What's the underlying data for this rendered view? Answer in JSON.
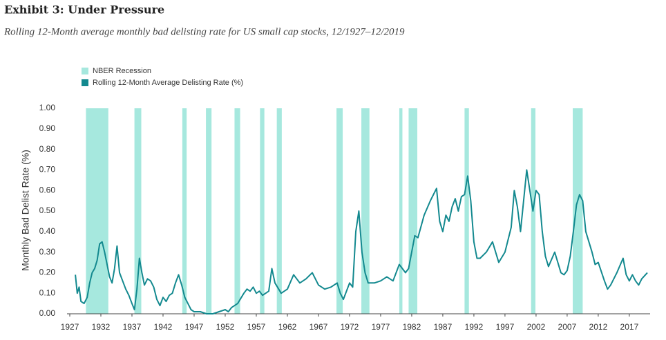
{
  "chart_data": {
    "type": "line",
    "title": "Exhibit 3: Under Pressure",
    "subtitle": "Rolling 12-Month average monthly bad delisting rate for US small cap stocks, 12/1927–12/2019",
    "y_label": "Monthly Bad Delist Rate (%)",
    "legend_position": "upper left",
    "recessions": {
      "name": "NBER Recession",
      "color": "#a6e8de",
      "ranges": [
        [
          1929.6,
          1933.2
        ],
        [
          1937.4,
          1938.5
        ],
        [
          1945.1,
          1945.8
        ],
        [
          1948.9,
          1949.8
        ],
        [
          1953.5,
          1954.4
        ],
        [
          1957.6,
          1958.3
        ],
        [
          1960.3,
          1961.1
        ],
        [
          1969.9,
          1970.9
        ],
        [
          1973.9,
          1975.2
        ],
        [
          1980.0,
          1980.5
        ],
        [
          1981.5,
          1982.9
        ],
        [
          1990.5,
          1991.2
        ],
        [
          2001.2,
          2001.9
        ],
        [
          2007.9,
          2009.5
        ]
      ]
    },
    "x": [
      1927.9,
      1928.2,
      1928.5,
      1928.8,
      1929.3,
      1929.8,
      1930.2,
      1930.6,
      1931.0,
      1931.4,
      1931.8,
      1932.2,
      1932.6,
      1933.0,
      1933.4,
      1933.8,
      1934.2,
      1934.6,
      1935.0,
      1935.5,
      1936.0,
      1936.5,
      1937.0,
      1937.4,
      1937.8,
      1938.2,
      1938.6,
      1939.0,
      1939.5,
      1940.0,
      1940.5,
      1941.0,
      1941.5,
      1942.0,
      1942.5,
      1943.0,
      1943.5,
      1944.0,
      1944.5,
      1945.0,
      1945.5,
      1946.0,
      1946.5,
      1947.0,
      1948,
      1949,
      1950,
      1951,
      1952,
      1952.5,
      1953,
      1954,
      1955,
      1955.5,
      1956,
      1956.5,
      1957,
      1957.5,
      1958,
      1959,
      1959.5,
      1960,
      1961,
      1962,
      1963,
      1964,
      1965,
      1966,
      1967,
      1968,
      1969,
      1970,
      1970.5,
      1971,
      1972,
      1972.5,
      1973,
      1973.5,
      1974,
      1974.5,
      1975,
      1976,
      1977,
      1978,
      1979,
      1980,
      1980.5,
      1981,
      1981.5,
      1982,
      1982.5,
      1983,
      1984,
      1985,
      1986,
      1986.5,
      1987,
      1987.5,
      1988,
      1988.5,
      1989,
      1989.5,
      1990,
      1990.5,
      1991,
      1991.5,
      1992,
      1992.5,
      1993,
      1994,
      1995,
      1996,
      1997,
      1998,
      1998.5,
      1999,
      1999.5,
      2000,
      2000.5,
      2001,
      2001.5,
      2002,
      2002.5,
      2003,
      2003.5,
      2004,
      2005,
      2005.5,
      2006,
      2006.5,
      2007,
      2007.5,
      2008,
      2008.5,
      2009,
      2009.5,
      2010,
      2011,
      2011.5,
      2012,
      2013,
      2013.5,
      2014,
      2015,
      2016,
      2016.5,
      2017,
      2017.5,
      2018,
      2018.5,
      2019,
      2019.9
    ],
    "series": [
      {
        "name": "Rolling 12-Month Average Delisting Rate (%)",
        "color": "#13898f",
        "values": [
          0.19,
          0.1,
          0.13,
          0.06,
          0.05,
          0.08,
          0.15,
          0.2,
          0.22,
          0.26,
          0.34,
          0.35,
          0.3,
          0.24,
          0.18,
          0.15,
          0.22,
          0.33,
          0.2,
          0.16,
          0.12,
          0.09,
          0.05,
          0.02,
          0.12,
          0.27,
          0.2,
          0.14,
          0.17,
          0.16,
          0.13,
          0.07,
          0.04,
          0.08,
          0.06,
          0.09,
          0.1,
          0.15,
          0.19,
          0.14,
          0.08,
          0.05,
          0.02,
          0.01,
          0.01,
          0.0,
          0.0,
          0.01,
          0.02,
          0.01,
          0.03,
          0.05,
          0.1,
          0.12,
          0.11,
          0.13,
          0.1,
          0.11,
          0.09,
          0.11,
          0.22,
          0.15,
          0.1,
          0.12,
          0.19,
          0.15,
          0.17,
          0.2,
          0.14,
          0.12,
          0.13,
          0.15,
          0.1,
          0.07,
          0.15,
          0.13,
          0.4,
          0.5,
          0.3,
          0.2,
          0.15,
          0.15,
          0.16,
          0.18,
          0.16,
          0.24,
          0.22,
          0.2,
          0.22,
          0.3,
          0.38,
          0.37,
          0.48,
          0.55,
          0.61,
          0.45,
          0.4,
          0.48,
          0.45,
          0.52,
          0.56,
          0.5,
          0.57,
          0.58,
          0.67,
          0.55,
          0.35,
          0.27,
          0.27,
          0.3,
          0.35,
          0.25,
          0.3,
          0.42,
          0.6,
          0.52,
          0.4,
          0.55,
          0.7,
          0.6,
          0.5,
          0.6,
          0.58,
          0.4,
          0.28,
          0.23,
          0.3,
          0.25,
          0.2,
          0.19,
          0.21,
          0.28,
          0.4,
          0.53,
          0.58,
          0.55,
          0.4,
          0.3,
          0.24,
          0.25,
          0.16,
          0.12,
          0.14,
          0.2,
          0.27,
          0.19,
          0.16,
          0.19,
          0.16,
          0.14,
          0.17,
          0.2
        ]
      }
    ],
    "xlim": [
      1927,
      2019.9
    ],
    "xticks": [
      1927,
      1932,
      1937,
      1942,
      1947,
      1952,
      1957,
      1962,
      1967,
      1972,
      1977,
      1982,
      1987,
      1992,
      1997,
      2002,
      2007,
      2012,
      2017
    ],
    "ylim": [
      0,
      1
    ],
    "yticks": [
      {
        "value": 0,
        "label": "0.00"
      },
      {
        "value": 0.1,
        "label": "0.10"
      },
      {
        "value": 0.2,
        "label": "0.20"
      },
      {
        "value": 0.3,
        "label": "0.30"
      },
      {
        "value": 0.4,
        "label": "0.40"
      },
      {
        "value": 0.5,
        "label": "0.50"
      },
      {
        "value": 0.6,
        "label": "0.60"
      },
      {
        "value": 0.7,
        "label": "0.70"
      },
      {
        "value": 0.8,
        "label": "0.80"
      },
      {
        "value": 0.9,
        "label": "0.90"
      },
      {
        "value": 1,
        "label": "1.00"
      }
    ]
  }
}
